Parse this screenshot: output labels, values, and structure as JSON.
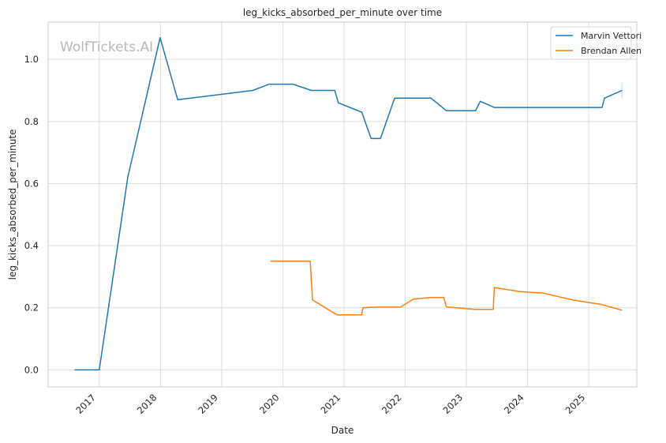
{
  "watermark": "WolfTickets.AI",
  "chart_data": {
    "type": "line",
    "title": "leg_kicks_absorbed_per_minute over time",
    "xlabel": "Date",
    "ylabel": "leg_kicks_absorbed_per_minute",
    "x_ticks": [
      "2017",
      "2018",
      "2019",
      "2020",
      "2021",
      "2022",
      "2023",
      "2024",
      "2025"
    ],
    "y_ticks": [
      "0.0",
      "0.2",
      "0.4",
      "0.6",
      "0.8",
      "1.0"
    ],
    "xlim": [
      "2016-03-01",
      "2025-10-15"
    ],
    "ylim": [
      -0.055,
      1.12
    ],
    "grid": true,
    "legend_position": "top-right",
    "series": [
      {
        "name": "Marvin Vettori",
        "color": "#1f77b4",
        "points": [
          [
            "2016-08-06",
            0.0
          ],
          [
            "2017-01-01",
            0.0
          ],
          [
            "2017-06-20",
            0.62
          ],
          [
            "2017-12-30",
            1.07
          ],
          [
            "2018-04-14",
            0.87
          ],
          [
            "2019-07-06",
            0.9
          ],
          [
            "2019-10-12",
            0.92
          ],
          [
            "2020-02-29",
            0.92
          ],
          [
            "2020-06-20",
            0.9
          ],
          [
            "2020-11-07",
            0.9
          ],
          [
            "2020-11-28",
            0.86
          ],
          [
            "2021-04-17",
            0.83
          ],
          [
            "2021-06-12",
            0.745
          ],
          [
            "2021-08-07",
            0.745
          ],
          [
            "2021-10-30",
            0.875
          ],
          [
            "2022-06-04",
            0.875
          ],
          [
            "2022-09-03",
            0.835
          ],
          [
            "2023-02-25",
            0.835
          ],
          [
            "2023-03-25",
            0.865
          ],
          [
            "2023-06-17",
            0.845
          ],
          [
            "2025-03-22",
            0.845
          ],
          [
            "2025-04-05",
            0.875
          ],
          [
            "2025-07-19",
            0.9
          ]
        ]
      },
      {
        "name": "Brendan Allen",
        "color": "#ff7f0e",
        "points": [
          [
            "2019-10-19",
            0.35
          ],
          [
            "2020-06-13",
            0.35
          ],
          [
            "2020-06-27",
            0.225
          ],
          [
            "2020-11-21",
            0.177
          ],
          [
            "2021-04-17",
            0.177
          ],
          [
            "2021-04-24",
            0.2
          ],
          [
            "2021-07-24",
            0.202
          ],
          [
            "2021-12-04",
            0.202
          ],
          [
            "2022-02-19",
            0.228
          ],
          [
            "2022-05-28",
            0.233
          ],
          [
            "2022-08-20",
            0.233
          ],
          [
            "2022-09-03",
            0.203
          ],
          [
            "2023-02-18",
            0.195
          ],
          [
            "2023-06-10",
            0.195
          ],
          [
            "2023-06-17",
            0.265
          ],
          [
            "2023-11-18",
            0.252
          ],
          [
            "2024-04-06",
            0.247
          ],
          [
            "2024-09-28",
            0.225
          ],
          [
            "2025-03-01",
            0.212
          ],
          [
            "2025-03-22",
            0.21
          ],
          [
            "2025-07-19",
            0.192
          ]
        ]
      }
    ]
  }
}
